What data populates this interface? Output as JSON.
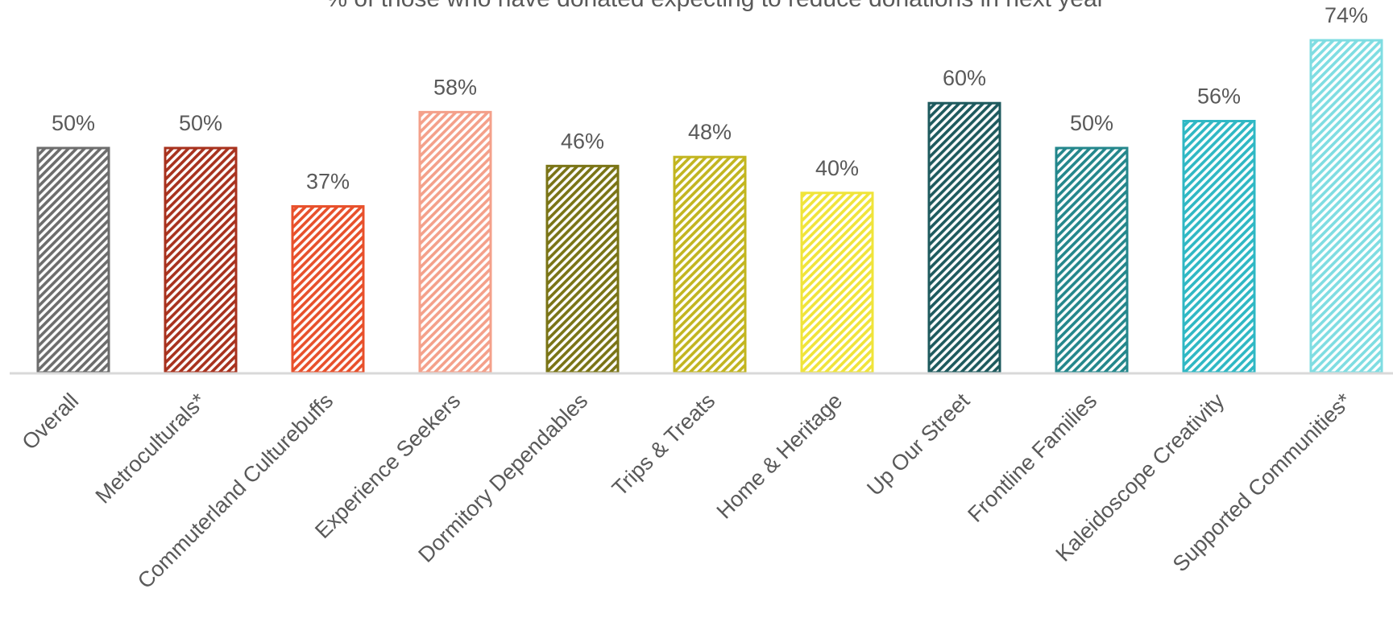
{
  "chart_data": {
    "type": "bar",
    "title": "% of those who have donated expecting to reduce donations in next year",
    "xlabel": "",
    "ylabel": "",
    "ylim": [
      0,
      80
    ],
    "grid": false,
    "legend": "none",
    "categories": [
      "Overall",
      "Metroculturals*",
      "Commuterland Culturebuffs",
      "Experience Seekers",
      "Dormitory Dependables",
      "Trips & Treats",
      "Home & Heritage",
      "Up Our Street",
      "Frontline Families",
      "Kaleidoscope Creativity",
      "Supported Communities*"
    ],
    "values": [
      50,
      50,
      37,
      58,
      46,
      48,
      40,
      60,
      50,
      56,
      74
    ],
    "value_labels": [
      "50%",
      "50%",
      "37%",
      "58%",
      "46%",
      "48%",
      "40%",
      "60%",
      "50%",
      "56%",
      "74%"
    ],
    "colors": [
      "#6d6d6d",
      "#a8321e",
      "#e8502b",
      "#f4a08a",
      "#7a7416",
      "#c2b51f",
      "#f0e43a",
      "#1e5a5e",
      "#24878c",
      "#2fb8c4",
      "#7fdde2"
    ]
  },
  "colors": {
    "axis": "#d9d9d9",
    "text": "#595959"
  }
}
